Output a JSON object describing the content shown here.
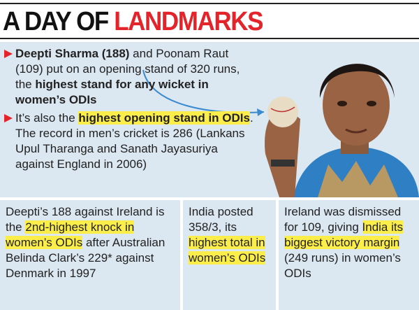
{
  "header": {
    "title_segments": [
      {
        "text": "A DAY OF ",
        "color": "#111111"
      },
      {
        "text": "LANDMARKS",
        "color": "#e3242b"
      }
    ]
  },
  "bullets": [
    {
      "segments": [
        {
          "text": "Deepti Sharma (188)",
          "bold": true
        },
        {
          "text": " and Poonam Raut (109) put on an opening stand of 320 runs, the "
        },
        {
          "text": "highest stand for any wicket in women’s ODIs",
          "bold": true
        }
      ]
    },
    {
      "segments": [
        {
          "text": "It’s also the "
        },
        {
          "text": "highest opening stand in ODIs",
          "bold": true,
          "highlight": true
        },
        {
          "text": ". The record in men’s cricket is 286 (Lankans Upul Tharanga and Sanath Jayasuriya against England in 2006)"
        }
      ]
    }
  ],
  "columns": [
    {
      "segments": [
        {
          "text": "Deepti’s 188 against Ireland is the "
        },
        {
          "text": "2nd-highest knock in women’s ODIs",
          "highlight": true
        },
        {
          "text": " after Australian Belinda Clark’s 229* against Denmark in 1997"
        }
      ]
    },
    {
      "segments": [
        {
          "text": "India posted 358/3, its "
        },
        {
          "text": "highest total in women’s ODIs",
          "highlight": true
        }
      ]
    },
    {
      "segments": [
        {
          "text": "Ireland was dismissed for 109, giving "
        },
        {
          "text": "India its biggest victory margin",
          "highlight": true
        },
        {
          "text": " (249 runs) in women’s ODIs"
        }
      ]
    }
  ]
}
